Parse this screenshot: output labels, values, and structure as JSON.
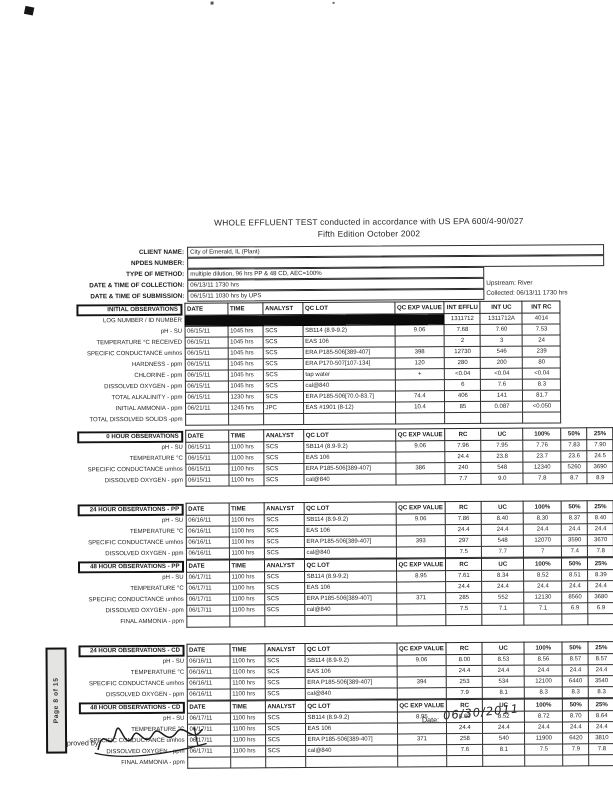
{
  "title": {
    "line1": "WHOLE EFFLUENT TEST conducted in accordance with US EPA 600/4-90/027",
    "line2": "Fifth Edition October 2002"
  },
  "header_fields": [
    {
      "label": "CLIENT NAME:",
      "value": "City of Emerald, IL (Plant)"
    },
    {
      "label": "NPDES NUMBER:",
      "value": ""
    },
    {
      "label": "TYPE OF METHOD:",
      "value": "multiple dilution, 96 hrs PP & 48 CD, AEC=100%"
    },
    {
      "label": "DATE & TIME OF COLLECTION:",
      "value": "06/13/11 1730 hrs"
    },
    {
      "label": "DATE & TIME OF SUBMISSION:",
      "value": "06/15/11 1030 hrs by UPS"
    }
  ],
  "upstream_note": {
    "line1": "Upstream:  River",
    "line2": "Collected: 06/13/11 1730 hrs"
  },
  "sections": [
    {
      "title": "INITIAL OBSERVATIONS",
      "columns": [
        "DATE",
        "TIME",
        "ANALYST",
        "QC LOT",
        "QC EXP VALUE",
        "INT EFFLU",
        "INT UC",
        "INT RC"
      ],
      "rows": [
        {
          "label": "LOG NUMBER / ID NUMBER",
          "redacted": true,
          "cells": [
            "",
            "",
            "",
            "",
            "",
            "1311712",
            "1311712A",
            "4014"
          ]
        },
        {
          "label": "pH - SU",
          "cells": [
            "06/15/11",
            "1045 hrs",
            "SCS",
            "SB114 (8.9-9.2)",
            "9.06",
            "7.68",
            "7.60",
            "7.53"
          ]
        },
        {
          "label": "TEMPERATURE °C RECEIVED",
          "cells": [
            "06/15/11",
            "1045 hrs",
            "SCS",
            "EAS 106",
            "",
            "2",
            "3",
            "24"
          ]
        },
        {
          "label": "SPECIFIC CONDUCTANCE umhos",
          "cells": [
            "06/15/11",
            "1045 hrs",
            "SCS",
            "ERA P185-506[389-407]",
            "398",
            "12730",
            "546",
            "239"
          ]
        },
        {
          "label": "HARDNESS - ppm",
          "cells": [
            "06/15/11",
            "1045 hrs",
            "SCS",
            "ERA P170-507[107-134]",
            "120",
            "280",
            "200",
            "80"
          ]
        },
        {
          "label": "CHLORINE - ppm",
          "cells": [
            "06/15/11",
            "1045 hrs",
            "SCS",
            "tap water",
            "+",
            "<0.04",
            "<0.04",
            "<0.04"
          ]
        },
        {
          "label": "DISSOLVED OXYGEN - ppm",
          "cells": [
            "06/15/11",
            "1045 hrs",
            "SCS",
            "cal@840",
            "",
            "6",
            "7.6",
            "8.3"
          ]
        },
        {
          "label": "TOTAL ALKALINITY - ppm",
          "cells": [
            "06/15/11",
            "1230 hrs",
            "SCS",
            "ERA P185-506[70.0-83.7]",
            "74.4",
            "406",
            "141",
            "81.7"
          ]
        },
        {
          "label": "INITIAL AMMONIA - ppm",
          "cells": [
            "06/21/11",
            "1245 hrs",
            "JPC",
            "EAS #1901 (8-12)",
            "10.4",
            "85",
            "0.087",
            "<0.050"
          ]
        },
        {
          "label": "TOTAL DISSOLVED SOLIDS -ppm",
          "cells": [
            "",
            "",
            "",
            "",
            "",
            "",
            "",
            ""
          ]
        }
      ]
    },
    {
      "title": "0 HOUR OBSERVATIONS",
      "columns": [
        "DATE",
        "TIME",
        "ANALYST",
        "QC LOT",
        "QC EXP VALUE",
        "RC",
        "UC",
        "100%",
        "50%",
        "25%"
      ],
      "clipped_column": "1",
      "rows": [
        {
          "label": "pH - SU",
          "cells": [
            "06/15/11",
            "1100 hrs",
            "SCS",
            "SB114 (8.9-9.2)",
            "9.06",
            "7.96",
            "7.95",
            "7.76",
            "7.83",
            "7.90"
          ]
        },
        {
          "label": "TEMPERATURE °C",
          "cells": [
            "06/15/11",
            "1100 hrs",
            "SCS",
            "EAS 106",
            "",
            "24.4",
            "23.8",
            "23.7",
            "23.6",
            "24.5"
          ]
        },
        {
          "label": "SPECIFIC CONDUCTANCE umhos",
          "cells": [
            "06/15/11",
            "1100 hrs",
            "SCS",
            "ERA P185-506[389-407]",
            "386",
            "240",
            "548",
            "12340",
            "5260",
            "3690"
          ]
        },
        {
          "label": "DISSOLVED OXYGEN - ppm",
          "cells": [
            "06/15/11",
            "1100 hrs",
            "SCS",
            "cal@840",
            "",
            "7.7",
            "9.0",
            "7.8",
            "8.7",
            "8.9"
          ]
        }
      ]
    },
    {
      "title": "24 HOUR OBSERVATIONS - PP",
      "columns": [
        "DATE",
        "TIME",
        "ANALYST",
        "QC LOT",
        "QC EXP VALUE",
        "RC",
        "UC",
        "100%",
        "50%",
        "25%"
      ],
      "clipped_column": "1",
      "rows": [
        {
          "label": "pH - SU",
          "cells": [
            "06/16/11",
            "1100 hrs",
            "SCS",
            "SB114 (8.9-9.2)",
            "9.06",
            "7.86",
            "8.40",
            "8.30",
            "8.37",
            "8.40"
          ]
        },
        {
          "label": "TEMPERATURE °C",
          "cells": [
            "06/16/11",
            "1100 hrs",
            "SCS",
            "EAS 106",
            "",
            "24.4",
            "24.4",
            "24.4",
            "24.4",
            "24.4"
          ]
        },
        {
          "label": "SPECIFIC CONDUCTANCE umhos",
          "cells": [
            "06/16/11",
            "1100 hrs",
            "SCS",
            "ERA P185-506[389-407]",
            "393",
            "297",
            "548",
            "12070",
            "3590",
            "3670"
          ]
        },
        {
          "label": "DISSOLVED OXYGEN - ppm",
          "cells": [
            "06/16/11",
            "1100 hrs",
            "SCS",
            "cal@840",
            "",
            "7.5",
            "7.7",
            "7",
            "7.4",
            "7.8"
          ]
        }
      ]
    },
    {
      "title": "48 HOUR OBSERVATIONS - PP",
      "columns": [
        "DATE",
        "TIME",
        "ANALYST",
        "QC LOT",
        "QC EXP VALUE",
        "RC",
        "UC",
        "100%",
        "50%",
        "25%"
      ],
      "clipped_column": "1",
      "rows": [
        {
          "label": "pH - SU",
          "cells": [
            "06/17/11",
            "1100 hrs",
            "SCS",
            "SB114 (8.9-9.2)",
            "8.95",
            "7.61",
            "8.34",
            "8.52",
            "8.51",
            "8.39"
          ]
        },
        {
          "label": "TEMPERATURE °C",
          "cells": [
            "06/17/11",
            "1100 hrs",
            "SCS",
            "EAS 106",
            "",
            "24.4",
            "24.4",
            "24.4",
            "24.4",
            "24.4"
          ]
        },
        {
          "label": "SPECIFIC CONDUCTANCE umhos",
          "cells": [
            "06/17/11",
            "1100 hrs",
            "SCS",
            "ERA P185-506[389-407]",
            "371",
            "285",
            "552",
            "12130",
            "8560",
            "3680"
          ]
        },
        {
          "label": "DISSOLVED OXYGEN - ppm",
          "cells": [
            "06/17/11",
            "1100 hrs",
            "SCS",
            "cal@840",
            "",
            "7.5",
            "7.1",
            "7.1",
            "6.9",
            "6.9"
          ]
        },
        {
          "label": "FINAL AMMONIA - ppm",
          "cells": [
            "",
            "",
            "",
            "",
            "",
            "",
            "",
            "",
            "",
            ""
          ]
        }
      ]
    },
    {
      "title": "24 HOUR OBSERVATIONS - CD",
      "columns": [
        "DATE",
        "TIME",
        "ANALYST",
        "QC LOT",
        "QC EXP VALUE",
        "RC",
        "UC",
        "100%",
        "50%",
        "25%"
      ],
      "clipped_column": "1",
      "rows": [
        {
          "label": "pH - SU",
          "cells": [
            "06/16/11",
            "1100 hrs",
            "SCS",
            "SB114 (8.9-9.2)",
            "9.06",
            "8.00",
            "8.53",
            "8.56",
            "8.57",
            "8.57"
          ]
        },
        {
          "label": "TEMPERATURE °C",
          "cells": [
            "06/16/11",
            "1100 hrs",
            "SCS",
            "EAS 106",
            "",
            "24.4",
            "24.4",
            "24.4",
            "24.4",
            "24.4"
          ]
        },
        {
          "label": "SPECIFIC CONDUCTANCE umhos",
          "cells": [
            "06/16/11",
            "1100 hrs",
            "SCS",
            "ERA P185-506[389-407]",
            "394",
            "253",
            "534",
            "12100",
            "6440",
            "3540"
          ]
        },
        {
          "label": "DISSOLVED OXYGEN - ppm",
          "cells": [
            "06/16/11",
            "1100 hrs",
            "SCS",
            "cal@840",
            "",
            "7.9",
            "8.1",
            "8.3",
            "8.3",
            "8.3"
          ]
        }
      ]
    },
    {
      "title": "48 HOUR OBSERVATIONS - CD",
      "columns": [
        "DATE",
        "TIME",
        "ANALYST",
        "QC LOT",
        "QC EXP VALUE",
        "RC",
        "UC",
        "100%",
        "50%",
        "25%"
      ],
      "clipped_column": "1",
      "rows": [
        {
          "label": "pH - SU",
          "cells": [
            "06/17/11",
            "1100 hrs",
            "SCS",
            "SB114 (8.9-9.2)",
            "8.95",
            "8.60",
            "8.52",
            "8.72",
            "8.70",
            "8.64"
          ]
        },
        {
          "label": "TEMPERATURE °C",
          "cells": [
            "06/17/11",
            "1100 hrs",
            "SCS",
            "EAS 106",
            "",
            "24.4",
            "24.4",
            "24.4",
            "24.4",
            "24.4"
          ]
        },
        {
          "label": "SPECIFIC CONDUCTANCE umhos",
          "cells": [
            "06/17/11",
            "1100 hrs",
            "SCS",
            "ERA P185-506[389-407]",
            "371",
            "258",
            "540",
            "11900",
            "6420",
            "3810"
          ]
        },
        {
          "label": "DISSOLVED OXYGEN - ppm",
          "cells": [
            "06/17/11",
            "1100 hrs",
            "SCS",
            "cal@840",
            "",
            "7.6",
            "8.1",
            "7.5",
            "7.9",
            "7.8"
          ]
        },
        {
          "label": "FINAL AMMONIA - ppm",
          "cells": [
            "",
            "",
            "",
            "",
            "",
            "",
            "",
            "",
            "",
            ""
          ]
        }
      ]
    }
  ],
  "footer": {
    "approved_label": "Approved by:",
    "date_label": "Date:",
    "date_value": "06/30/2011"
  },
  "page_label": "Page 8 of 15"
}
